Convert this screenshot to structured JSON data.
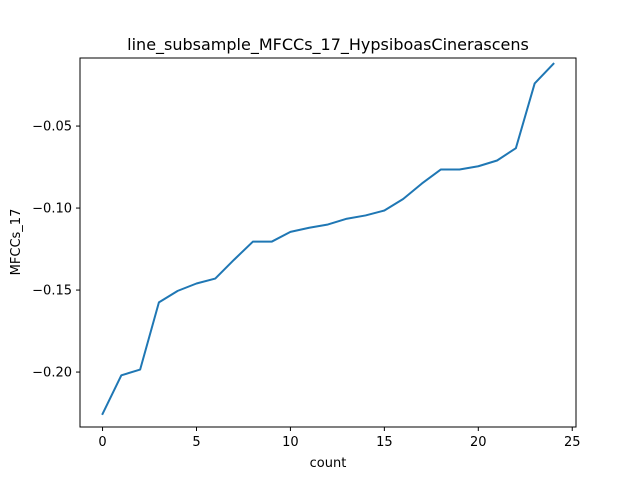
{
  "chart_data": {
    "type": "line",
    "title": "line_subsample_MFCCs_17_HypsiboasCinerascens",
    "xlabel": "count",
    "ylabel": "MFCCs_17",
    "xlim": [
      -1.2,
      25.2
    ],
    "ylim": [
      -0.2335,
      -0.0085
    ],
    "xticks": [
      0,
      5,
      10,
      15,
      20,
      25
    ],
    "xtick_labels": [
      "0",
      "5",
      "10",
      "15",
      "20",
      "25"
    ],
    "yticks": [
      -0.2,
      -0.15,
      -0.1,
      -0.05
    ],
    "ytick_labels": [
      "−0.20",
      "−0.15",
      "−0.10",
      "−0.05"
    ],
    "grid": false,
    "series": [
      {
        "color": "#1f77b4",
        "x": [
          0,
          1,
          2,
          3,
          4,
          5,
          6,
          7,
          8,
          9,
          10,
          11,
          12,
          13,
          14,
          15,
          16,
          17,
          18,
          19,
          20,
          21,
          22,
          23,
          24
        ],
        "y": [
          -0.2255,
          -0.202,
          -0.1985,
          -0.1575,
          -0.1505,
          -0.146,
          -0.143,
          -0.1315,
          -0.1205,
          -0.1205,
          -0.1145,
          -0.112,
          -0.11,
          -0.1065,
          -0.1045,
          -0.1015,
          -0.0945,
          -0.085,
          -0.0765,
          -0.0765,
          -0.0745,
          -0.071,
          -0.0635,
          -0.024,
          -0.012
        ]
      }
    ]
  }
}
